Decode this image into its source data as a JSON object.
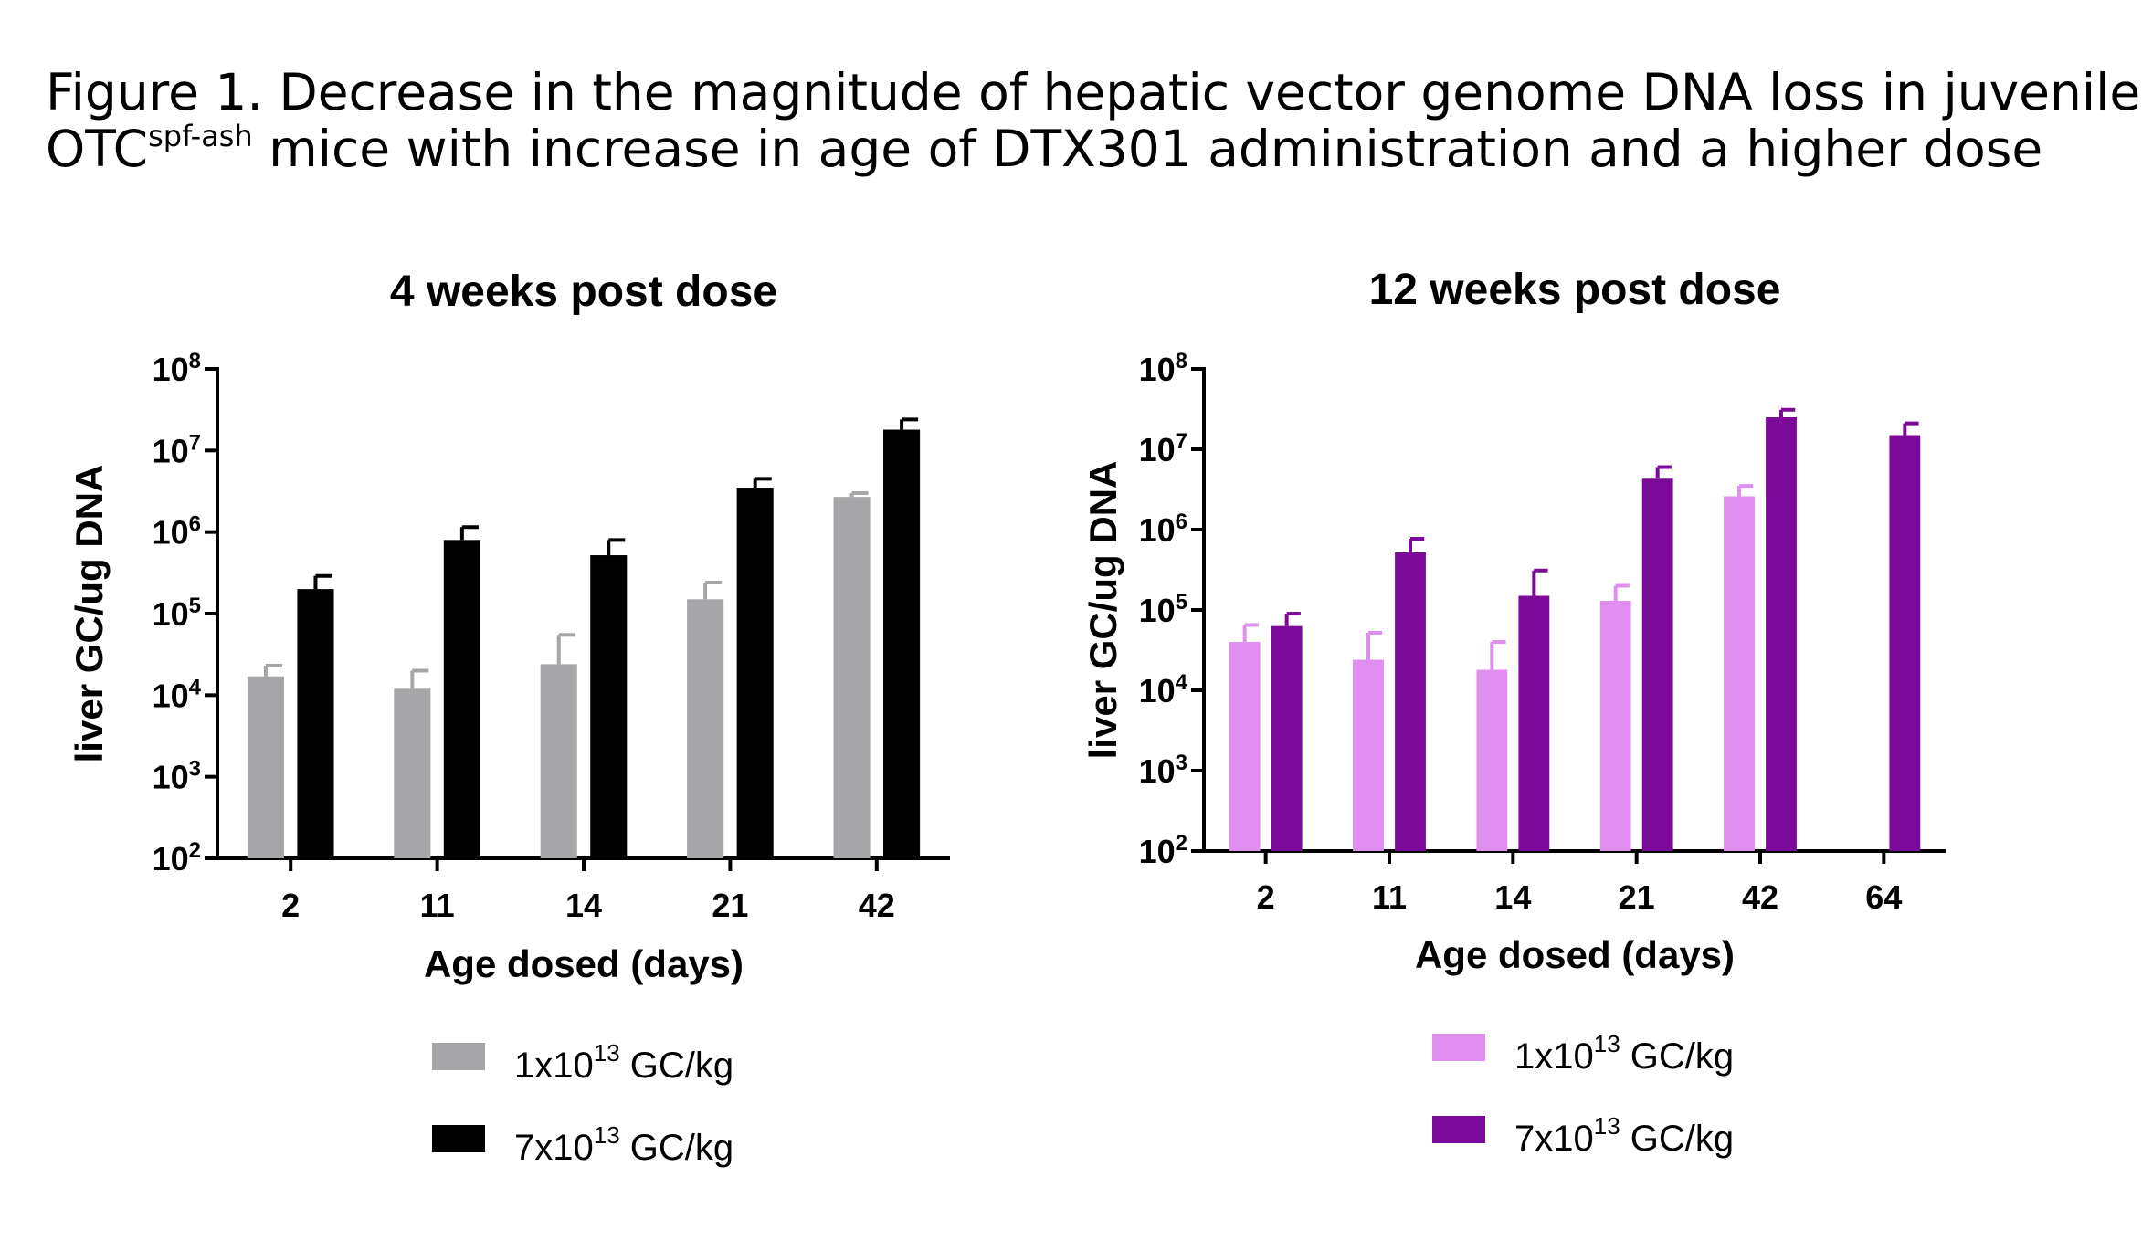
{
  "figure": {
    "title_line1": "Figure 1. Decrease in the magnitude of hepatic vector genome DNA loss in juvenile",
    "title_line2_prefix": "OTC",
    "title_line2_sup": "spf-ash",
    "title_line2_rest": " mice with increase in age of DTX301 administration and a higher dose"
  },
  "chart_data": [
    {
      "type": "bar",
      "title": "4 weeks post dose",
      "xlabel": "Age dosed (days)",
      "ylabel": "liver GC/ug DNA",
      "yscale": "log",
      "ylim": [
        100,
        100000000
      ],
      "yticks": [
        {
          "base": "10",
          "exp": "2",
          "value": 100
        },
        {
          "base": "10",
          "exp": "3",
          "value": 1000
        },
        {
          "base": "10",
          "exp": "4",
          "value": 10000
        },
        {
          "base": "10",
          "exp": "5",
          "value": 100000
        },
        {
          "base": "10",
          "exp": "6",
          "value": 1000000
        },
        {
          "base": "10",
          "exp": "7",
          "value": 10000000
        },
        {
          "base": "10",
          "exp": "8",
          "value": 100000000
        }
      ],
      "categories": [
        "2",
        "11",
        "14",
        "21",
        "42"
      ],
      "series": [
        {
          "name_base": "1x10",
          "name_exp": "13",
          "name_unit": " GC/kg",
          "color": "#a6a6a8",
          "values": [
            17000,
            12000,
            24000,
            150000,
            2700000
          ],
          "error_upper": [
            23000,
            20000,
            55000,
            240000,
            3000000
          ]
        },
        {
          "name_base": "7x10",
          "name_exp": "13",
          "name_unit": " GC/kg",
          "color": "#000000",
          "values": [
            200000,
            800000,
            520000,
            3500000,
            18000000
          ],
          "error_upper": [
            290000,
            1150000,
            800000,
            4500000,
            24000000
          ]
        }
      ],
      "legend_position": "bottom"
    },
    {
      "type": "bar",
      "title": "12 weeks post dose",
      "xlabel": "Age dosed (days)",
      "ylabel": "liver GC/ug DNA",
      "yscale": "log",
      "ylim": [
        100,
        100000000
      ],
      "yticks": [
        {
          "base": "10",
          "exp": "2",
          "value": 100
        },
        {
          "base": "10",
          "exp": "3",
          "value": 1000
        },
        {
          "base": "10",
          "exp": "4",
          "value": 10000
        },
        {
          "base": "10",
          "exp": "5",
          "value": 100000
        },
        {
          "base": "10",
          "exp": "6",
          "value": 1000000
        },
        {
          "base": "10",
          "exp": "7",
          "value": 10000000
        },
        {
          "base": "10",
          "exp": "8",
          "value": 100000000
        }
      ],
      "categories": [
        "2",
        "11",
        "14",
        "21",
        "42",
        "64"
      ],
      "series": [
        {
          "name_base": "1x10",
          "name_exp": "13",
          "name_unit": " GC/kg",
          "color": "#e08ff0",
          "values": [
            40000,
            24000,
            18000,
            130000,
            2600000,
            null
          ],
          "error_upper": [
            65000,
            52000,
            40000,
            200000,
            3500000,
            null
          ]
        },
        {
          "name_base": "7x10",
          "name_exp": "13",
          "name_unit": " GC/kg",
          "color": "#7b0a98",
          "values": [
            63000,
            520000,
            150000,
            4300000,
            25000000,
            15000000
          ],
          "error_upper": [
            90000,
            770000,
            310000,
            6000000,
            31000000,
            21000000
          ]
        }
      ],
      "legend_position": "bottom"
    }
  ]
}
